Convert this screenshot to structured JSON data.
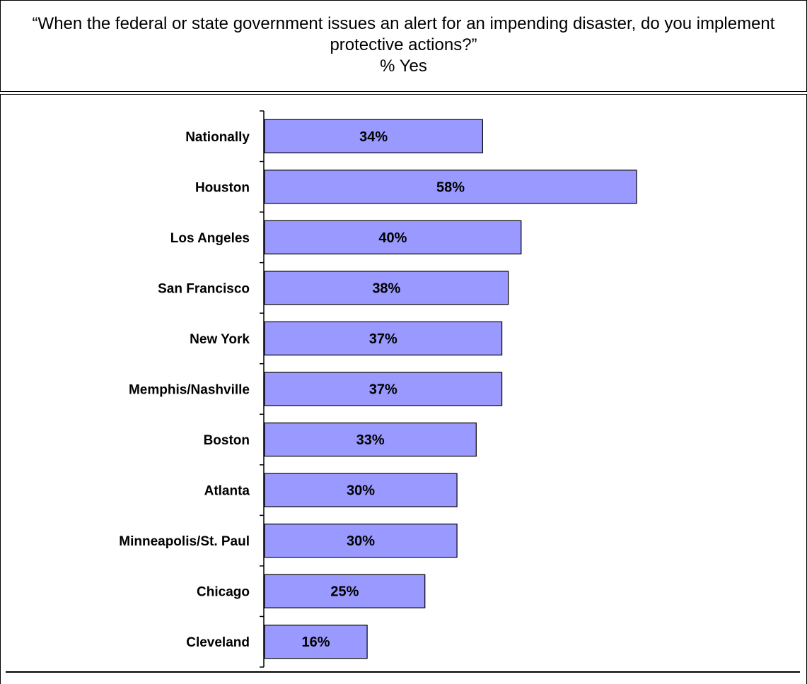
{
  "title": {
    "line1": "“When the federal or state government issues an alert for an impending disaster, do you implement protective actions?”",
    "line2": "% Yes"
  },
  "colors": {
    "bar_fill": "#9999ff",
    "bar_stroke": "#000000",
    "text": "#000000",
    "background": "#ffffff"
  },
  "chart_data": {
    "type": "bar",
    "orientation": "horizontal",
    "title": "“When the federal or state government issues an alert for an impending disaster, do you implement protective actions?”",
    "subtitle": "% Yes",
    "xlabel": "",
    "ylabel": "",
    "grid": false,
    "legend": "none",
    "xlim": [
      0,
      100
    ],
    "categories": [
      "Nationally",
      "Houston",
      "Los Angeles",
      "San Francisco",
      "New York",
      "Memphis/Nashville",
      "Boston",
      "Atlanta",
      "Minneapolis/St. Paul",
      "Chicago",
      "Cleveland"
    ],
    "values": [
      34,
      58,
      40,
      38,
      37,
      37,
      33,
      30,
      30,
      25,
      16
    ],
    "value_labels": [
      "34%",
      "58%",
      "40%",
      "38%",
      "37%",
      "37%",
      "33%",
      "30%",
      "30%",
      "25%",
      "16%"
    ]
  }
}
